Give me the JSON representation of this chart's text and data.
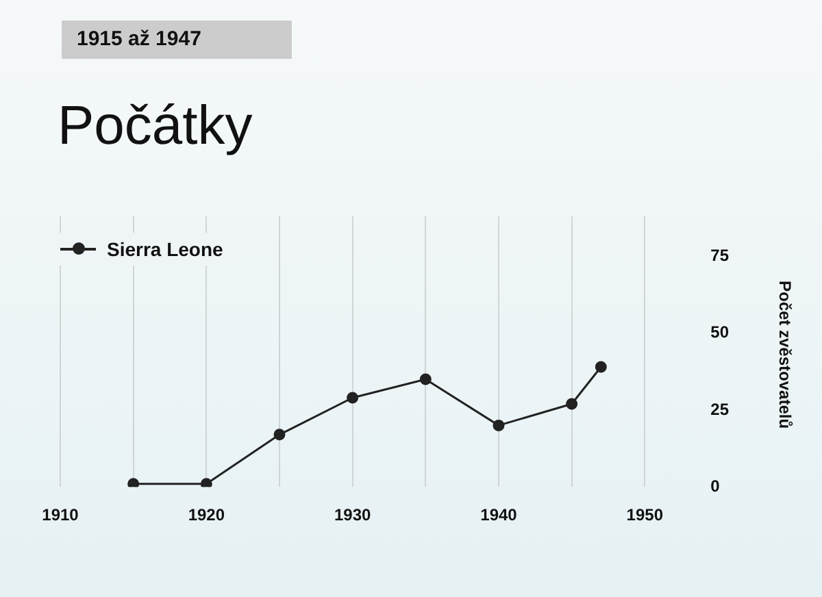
{
  "chart_data": {
    "type": "line",
    "subtitle": "1915 až 1947",
    "title": "Počátky",
    "y2label": "Počet zvěstovatelů",
    "x": [
      1915,
      1920,
      1925,
      1930,
      1935,
      1940,
      1945,
      1947
    ],
    "series": [
      {
        "name": "Sierra Leone",
        "color": "#222222",
        "axis": "y2",
        "values": [
          1,
          1,
          17,
          29,
          35,
          20,
          27,
          39
        ]
      }
    ],
    "xlim": [
      1910,
      1950
    ],
    "xticks": [
      1910,
      {
        "value": 1915,
        "label": null
      },
      1920,
      {
        "value": 1925,
        "label": null
      },
      1930,
      {
        "value": 1935,
        "label": null
      },
      1940,
      {
        "value": 1945,
        "label": null
      },
      1950
    ],
    "y2lim": [
      0,
      88
    ],
    "y2ticks": [
      0,
      25,
      50,
      75
    ],
    "grid": "x",
    "legend": "top left",
    "marker": "circle",
    "line_style": "solid"
  }
}
